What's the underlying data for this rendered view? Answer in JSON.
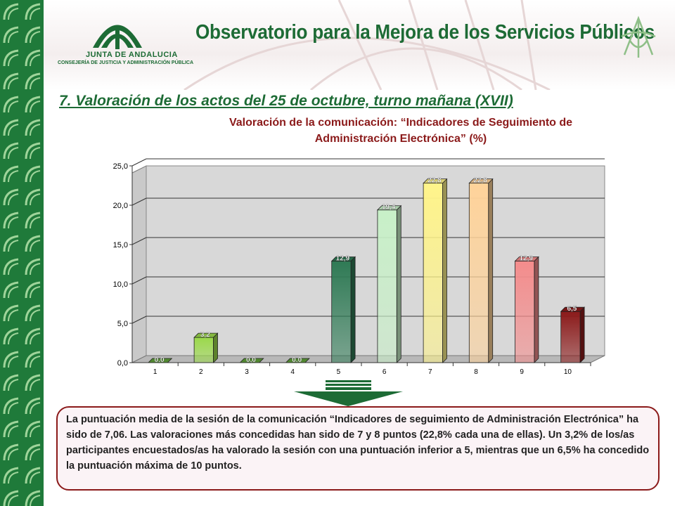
{
  "header": {
    "org_line1": "JUNTA DE ANDALUCIA",
    "org_line2": "CONSEJERÍA DE JUSTICIA Y ADMINISTRACIÓN PÚBLICA",
    "title": "Observatorio para la Mejora de los Servicios Públicos"
  },
  "section_title": "7. Valoración de los actos del 25 de octubre, turno mañana (XVII)",
  "subtitle_line1": "Valoración de la comunicación: “Indicadores de Seguimiento de",
  "subtitle_line2": "Administración Electrónica” (%)",
  "summary": "La puntuación media de la sesión de la comunicación “Indicadores de seguimiento de Administración Electrónica” ha sido de 7,06. Las valoraciones más concedidas han sido de 7 y 8 puntos (22,8% cada una de ellas). Un 3,2% de los/as participantes encuestados/as ha valorado la sesión con una puntuación inferior a 5, mientras que un 6,5% ha concedido la puntuación máxima de 10 puntos.",
  "colors": {
    "brand_green": "#1d6b35",
    "title_red": "#8b1a1a"
  },
  "chart_data": {
    "type": "bar",
    "categories": [
      "1",
      "2",
      "3",
      "4",
      "5",
      "6",
      "7",
      "8",
      "9",
      "10"
    ],
    "values": [
      0.0,
      3.2,
      0.0,
      0.0,
      12.9,
      19.4,
      22.8,
      22.8,
      12.9,
      6.5
    ],
    "data_labels": [
      "0,0",
      "3,2",
      "0,0",
      "0,0",
      "12,9",
      "19,4",
      "22,8",
      "22,8",
      "12,9",
      "6,5"
    ],
    "y_ticks": [
      "0,0",
      "5,0",
      "10,0",
      "15,0",
      "20,0",
      "25,0"
    ],
    "ylim": [
      0,
      25
    ],
    "grid": true,
    "bar_colors": [
      "#5fa03a",
      "#9bd94a",
      "#5fa03a",
      "#5fa03a",
      "#2f7a55",
      "#c8f0c8",
      "#fff48a",
      "#ffd39a",
      "#f48c8c",
      "#8b1a1a"
    ]
  }
}
